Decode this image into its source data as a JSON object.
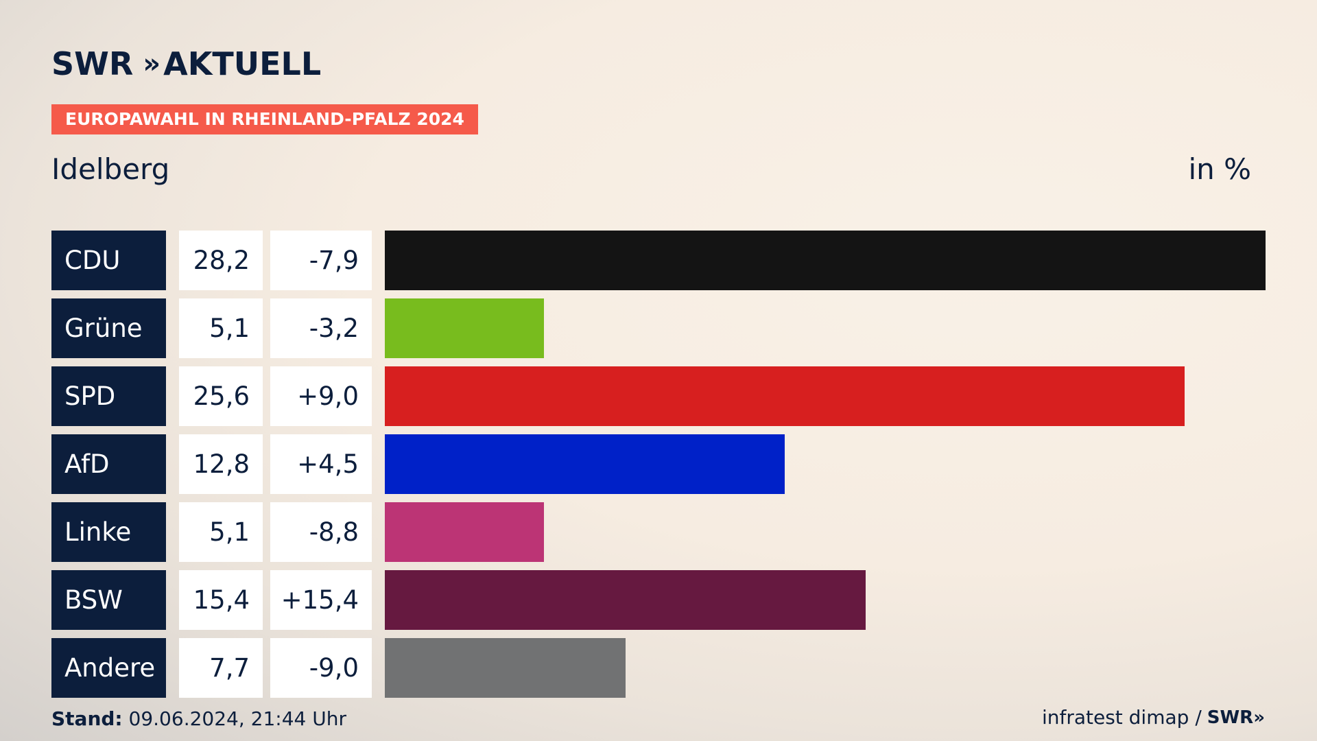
{
  "header": {
    "logo_text": "SWR",
    "logo_chevrons": "»",
    "logo_suffix": "AKTUELL",
    "badge": "EUROPAWAHL IN RHEINLAND-PFALZ 2024",
    "region": "Idelberg",
    "unit": "in %"
  },
  "footer": {
    "stand_label": "Stand:",
    "stand_value": "09.06.2024, 21:44 Uhr",
    "source": "infratest dimap /",
    "source_logo": "SWR»"
  },
  "chart_data": {
    "type": "bar",
    "orientation": "horizontal",
    "categories": [
      "CDU",
      "Grüne",
      "SPD",
      "AfD",
      "Linke",
      "BSW",
      "Andere"
    ],
    "values": [
      28.2,
      5.1,
      25.6,
      12.8,
      5.1,
      15.4,
      7.7
    ],
    "value_labels": [
      "28,2",
      "5,1",
      "25,6",
      "12,8",
      "5,1",
      "15,4",
      "7,7"
    ],
    "diff_labels": [
      "-7,9",
      "-3,2",
      "+9,0",
      "+4,5",
      "-8,8",
      "+15,4",
      "-9,0"
    ],
    "diffs": [
      -7.9,
      -3.2,
      9.0,
      4.5,
      -8.8,
      15.4,
      -9.0
    ],
    "colors": [
      "#141414",
      "#78bc1e",
      "#d71f1f",
      "#0021c8",
      "#bc3475",
      "#661940",
      "#717273"
    ],
    "xlim": [
      0,
      28.2
    ]
  }
}
